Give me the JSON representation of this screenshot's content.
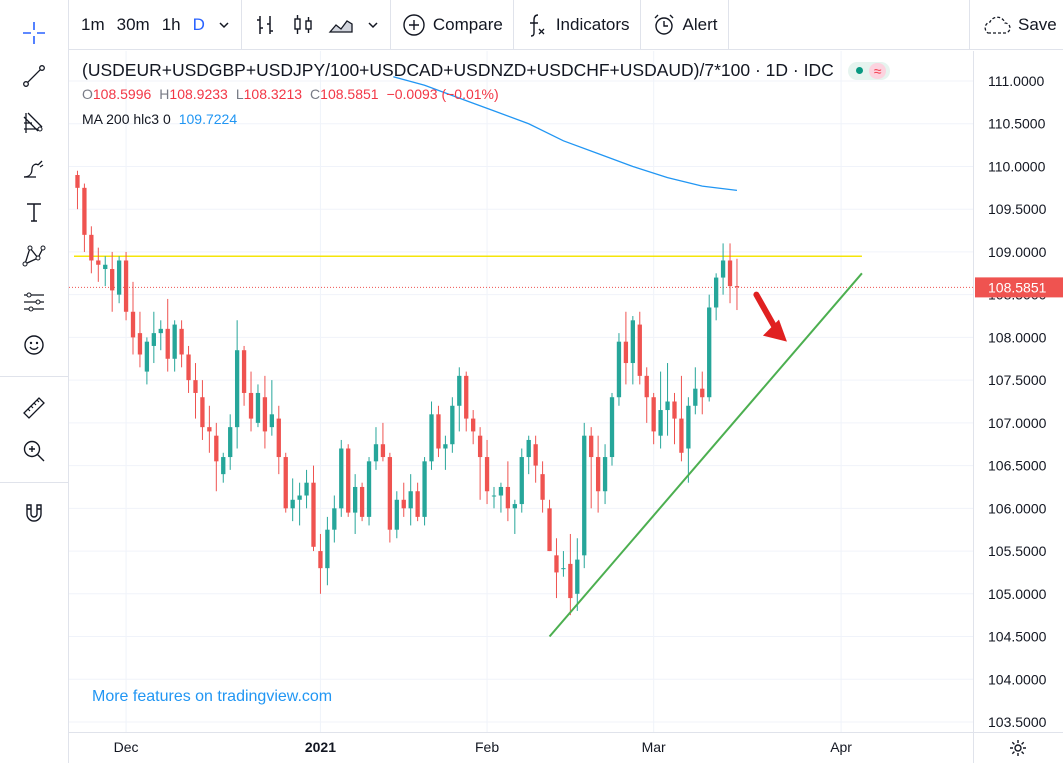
{
  "toolbar": {
    "intervals": [
      "1m",
      "30m",
      "1h",
      "D"
    ],
    "active_interval": "D",
    "compare_label": "Compare",
    "indicators_label": "Indicators",
    "alert_label": "Alert",
    "save_label": "Save"
  },
  "legend": {
    "title": "(USDEUR+USDGBP+USDJPY/100+USDCAD+USDNZD+USDCHF+USDAUD)/7*100 · 1D · IDC",
    "open_key": "O",
    "open": "108.5996",
    "high_key": "H",
    "high": "108.9233",
    "low_key": "L",
    "low": "108.3213",
    "close_key": "C",
    "close": "108.5851",
    "change": "−0.0093 (−0.01%)",
    "ma_label": "MA 200 hlc3 0",
    "ma_value": "109.7224"
  },
  "watermark": "More features on tradingview.com",
  "colors": {
    "up": "#26a69a",
    "down": "#ef5350",
    "ma": "#2196f3",
    "resistance": "#f5e50a",
    "trendline": "#4caf50",
    "arrow": "#e02020",
    "accent": "#2962ff"
  },
  "chart_data": {
    "type": "candlestick",
    "y_range": [
      103.5,
      111.0
    ],
    "y_ticks": [
      "111.0000",
      "110.5000",
      "110.0000",
      "109.5000",
      "109.0000",
      "108.5000",
      "108.0000",
      "107.5000",
      "107.0000",
      "106.5000",
      "106.0000",
      "105.5000",
      "105.0000",
      "104.5000",
      "104.0000",
      "103.5000"
    ],
    "x_ticks": [
      {
        "label": "Dec",
        "index": 7
      },
      {
        "label": "2021",
        "index": 35
      },
      {
        "label": "Feb",
        "index": 59
      },
      {
        "label": "Mar",
        "index": 83
      },
      {
        "label": "Apr",
        "index": 110
      }
    ],
    "x_range": [
      -0.5,
      129
    ],
    "last_price": "108.5851",
    "candles": [
      [
        109.9,
        109.95,
        109.5,
        109.75
      ],
      [
        109.75,
        109.8,
        109.0,
        109.2
      ],
      [
        109.2,
        109.3,
        108.75,
        108.9
      ],
      [
        108.9,
        109.05,
        108.65,
        108.85
      ],
      [
        108.8,
        108.95,
        108.6,
        108.85
      ],
      [
        108.8,
        109.0,
        108.3,
        108.55
      ],
      [
        108.5,
        108.95,
        108.4,
        108.9
      ],
      [
        108.9,
        109.0,
        108.2,
        108.3
      ],
      [
        108.3,
        108.65,
        107.8,
        108.0
      ],
      [
        108.05,
        108.3,
        107.65,
        107.8
      ],
      [
        107.6,
        108.0,
        107.45,
        107.95
      ],
      [
        107.9,
        108.3,
        107.7,
        108.05
      ],
      [
        108.05,
        108.2,
        107.85,
        108.1
      ],
      [
        108.1,
        108.45,
        107.6,
        107.75
      ],
      [
        107.75,
        108.2,
        107.6,
        108.15
      ],
      [
        108.1,
        108.2,
        107.65,
        107.8
      ],
      [
        107.8,
        107.9,
        107.35,
        107.5
      ],
      [
        107.5,
        107.7,
        107.05,
        107.35
      ],
      [
        107.3,
        107.5,
        106.8,
        106.95
      ],
      [
        106.95,
        107.2,
        106.65,
        106.9
      ],
      [
        106.85,
        107.0,
        106.2,
        106.55
      ],
      [
        106.4,
        106.65,
        106.3,
        106.6
      ],
      [
        106.6,
        107.1,
        106.45,
        106.95
      ],
      [
        106.95,
        108.2,
        106.7,
        107.85
      ],
      [
        107.85,
        107.9,
        107.2,
        107.35
      ],
      [
        107.35,
        107.6,
        106.9,
        107.05
      ],
      [
        107.0,
        107.45,
        106.95,
        107.35
      ],
      [
        107.3,
        107.55,
        106.7,
        106.9
      ],
      [
        106.95,
        107.5,
        106.85,
        107.1
      ],
      [
        107.05,
        107.2,
        106.4,
        106.6
      ],
      [
        106.6,
        106.65,
        105.95,
        106.0
      ],
      [
        106.0,
        106.35,
        105.85,
        106.1
      ],
      [
        106.1,
        106.3,
        105.8,
        106.15
      ],
      [
        106.15,
        106.45,
        106.0,
        106.3
      ],
      [
        106.3,
        106.5,
        105.5,
        105.55
      ],
      [
        105.5,
        105.7,
        105.0,
        105.3
      ],
      [
        105.3,
        105.9,
        105.1,
        105.75
      ],
      [
        105.75,
        106.15,
        105.6,
        106.0
      ],
      [
        106.0,
        106.8,
        105.9,
        106.7
      ],
      [
        106.7,
        106.75,
        105.9,
        105.95
      ],
      [
        105.95,
        106.4,
        105.7,
        106.25
      ],
      [
        106.25,
        106.3,
        105.85,
        105.9
      ],
      [
        105.9,
        106.6,
        105.8,
        106.55
      ],
      [
        106.55,
        106.95,
        106.45,
        106.75
      ],
      [
        106.75,
        107.0,
        106.55,
        106.6
      ],
      [
        106.6,
        106.65,
        105.6,
        105.75
      ],
      [
        105.75,
        106.2,
        105.65,
        106.1
      ],
      [
        106.1,
        106.3,
        105.9,
        106.0
      ],
      [
        106.0,
        106.4,
        105.8,
        106.2
      ],
      [
        106.2,
        106.3,
        105.85,
        105.9
      ],
      [
        105.9,
        106.6,
        105.8,
        106.55
      ],
      [
        106.55,
        107.25,
        106.45,
        107.1
      ],
      [
        107.1,
        107.2,
        106.6,
        106.7
      ],
      [
        106.7,
        106.85,
        106.45,
        106.75
      ],
      [
        106.75,
        107.3,
        106.65,
        107.2
      ],
      [
        107.2,
        107.65,
        106.9,
        107.55
      ],
      [
        107.55,
        107.6,
        106.9,
        107.05
      ],
      [
        107.05,
        107.15,
        106.75,
        106.9
      ],
      [
        106.85,
        106.95,
        106.1,
        106.6
      ],
      [
        106.6,
        106.8,
        106.05,
        106.2
      ],
      [
        106.15,
        106.25,
        106.0,
        106.15
      ],
      [
        106.15,
        106.3,
        105.95,
        106.25
      ],
      [
        106.25,
        106.55,
        105.85,
        106.0
      ],
      [
        106.0,
        106.1,
        105.7,
        106.05
      ],
      [
        106.05,
        106.7,
        105.95,
        106.6
      ],
      [
        106.6,
        106.85,
        106.4,
        106.8
      ],
      [
        106.75,
        106.85,
        106.3,
        106.5
      ],
      [
        106.4,
        106.55,
        105.95,
        106.1
      ],
      [
        106.0,
        106.1,
        105.5,
        105.5
      ],
      [
        105.45,
        105.65,
        104.95,
        105.25
      ],
      [
        105.3,
        105.5,
        105.2,
        105.3
      ],
      [
        105.35,
        105.7,
        104.75,
        104.95
      ],
      [
        105.0,
        105.65,
        104.8,
        105.4
      ],
      [
        105.45,
        107.0,
        105.3,
        106.85
      ],
      [
        106.85,
        106.95,
        106.0,
        106.6
      ],
      [
        106.6,
        106.85,
        105.95,
        106.2
      ],
      [
        106.2,
        106.75,
        106.05,
        106.6
      ],
      [
        106.6,
        107.35,
        106.5,
        107.3
      ],
      [
        107.3,
        108.05,
        107.2,
        107.95
      ],
      [
        107.95,
        108.3,
        107.45,
        107.7
      ],
      [
        107.7,
        108.25,
        107.45,
        108.2
      ],
      [
        108.15,
        108.3,
        107.45,
        107.55
      ],
      [
        107.55,
        107.65,
        107.0,
        107.3
      ],
      [
        107.3,
        107.35,
        106.75,
        106.9
      ],
      [
        106.85,
        107.6,
        106.7,
        107.15
      ],
      [
        107.15,
        107.7,
        106.85,
        107.25
      ],
      [
        107.25,
        107.35,
        106.75,
        107.05
      ],
      [
        107.05,
        107.55,
        106.55,
        106.65
      ],
      [
        106.7,
        107.3,
        106.3,
        107.2
      ],
      [
        107.2,
        107.65,
        107.1,
        107.4
      ],
      [
        107.4,
        107.6,
        107.1,
        107.3
      ],
      [
        107.3,
        108.5,
        107.25,
        108.35
      ],
      [
        108.35,
        108.75,
        108.2,
        108.7
      ],
      [
        108.7,
        109.1,
        108.5,
        108.9
      ],
      [
        108.9,
        109.1,
        108.4,
        108.6
      ],
      [
        108.6,
        108.92,
        108.32,
        108.59
      ]
    ],
    "ma200": [
      [
        45.5,
        111.05
      ],
      [
        50,
        110.95
      ],
      [
        55,
        110.8
      ],
      [
        60,
        110.65
      ],
      [
        65,
        110.5
      ],
      [
        70,
        110.3
      ],
      [
        75,
        110.15
      ],
      [
        80,
        110.0
      ],
      [
        85,
        109.87
      ],
      [
        90,
        109.77
      ],
      [
        95,
        109.72
      ]
    ],
    "resistance_level": 108.95,
    "trendline": [
      [
        68,
        104.5
      ],
      [
        113,
        108.75
      ]
    ]
  }
}
